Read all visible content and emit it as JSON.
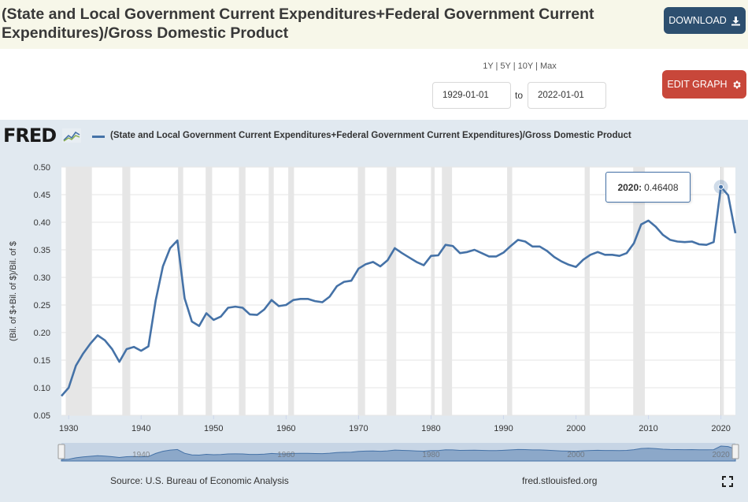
{
  "header": {
    "title": "(State and Local Government Current Expenditures+Federal Government Current Expenditures)/Gross Domestic Product",
    "download_label": "DOWNLOAD",
    "edit_label": "EDIT GRAPH"
  },
  "controls": {
    "range_links": "1Y | 5Y | 10Y | Max",
    "start_date": "1929-01-01",
    "to_label": "to",
    "end_date": "2022-01-01"
  },
  "logo": {
    "text": "FRED"
  },
  "tooltip": {
    "label": "2020:",
    "value": "0.46408"
  },
  "footer": {
    "source": "Source: U.S. Bureau of Economic Analysis",
    "site": "fred.stlouisfed.org"
  },
  "colors": {
    "line": "#4572a7",
    "recession": "#e6e6e6",
    "panel": "#e1e9f0"
  },
  "chart_data": {
    "type": "line",
    "title": "(State and Local Government Current Expenditures+Federal Government Current Expenditures)/Gross Domestic Product",
    "ylabel": "(Bil. of $+Bil. of $)/Bil. of $",
    "xlabel": "",
    "ylim": [
      0.05,
      0.5
    ],
    "xlim": [
      1929,
      2022
    ],
    "yticks": [
      "0.05",
      "0.10",
      "0.15",
      "0.20",
      "0.25",
      "0.30",
      "0.35",
      "0.40",
      "0.45",
      "0.50"
    ],
    "xticks": [
      "1930",
      "1940",
      "1950",
      "1960",
      "1970",
      "1980",
      "1990",
      "2000",
      "2010",
      "2020"
    ],
    "navigator_labels": [
      "1940",
      "1960",
      "1980",
      "2000",
      "2020"
    ],
    "legend": [
      "(State and Local Government Current Expenditures+Federal Government Current Expenditures)/Gross Domestic Product"
    ],
    "recessions": [
      [
        1929.6,
        1933.2
      ],
      [
        1937.4,
        1938.5
      ],
      [
        1945.1,
        1945.8
      ],
      [
        1948.9,
        1949.8
      ],
      [
        1953.5,
        1954.4
      ],
      [
        1957.6,
        1958.3
      ],
      [
        1960.3,
        1961.1
      ],
      [
        1969.9,
        1970.9
      ],
      [
        1973.9,
        1975.2
      ],
      [
        1980.0,
        1980.5
      ],
      [
        1981.5,
        1982.9
      ],
      [
        1990.5,
        1991.2
      ],
      [
        2001.2,
        2001.9
      ],
      [
        2007.9,
        2009.5
      ],
      [
        2020.1,
        2020.4
      ]
    ],
    "series": [
      {
        "name": "(State and Local Government Current Expenditures+Federal Government Current Expenditures)/Gross Domestic Product",
        "x": [
          1929,
          1930,
          1931,
          1932,
          1933,
          1934,
          1935,
          1936,
          1937,
          1938,
          1939,
          1940,
          1941,
          1942,
          1943,
          1944,
          1945,
          1946,
          1947,
          1948,
          1949,
          1950,
          1951,
          1952,
          1953,
          1954,
          1955,
          1956,
          1957,
          1958,
          1959,
          1960,
          1961,
          1962,
          1963,
          1964,
          1965,
          1966,
          1967,
          1968,
          1969,
          1970,
          1971,
          1972,
          1973,
          1974,
          1975,
          1976,
          1977,
          1978,
          1979,
          1980,
          1981,
          1982,
          1983,
          1984,
          1985,
          1986,
          1987,
          1988,
          1989,
          1990,
          1991,
          1992,
          1993,
          1994,
          1995,
          1996,
          1997,
          1998,
          1999,
          2000,
          2001,
          2002,
          2003,
          2004,
          2005,
          2006,
          2007,
          2008,
          2009,
          2010,
          2011,
          2012,
          2013,
          2014,
          2015,
          2016,
          2017,
          2018,
          2019,
          2020,
          2021,
          2022
        ],
        "values": [
          0.085,
          0.1,
          0.14,
          0.162,
          0.18,
          0.195,
          0.186,
          0.17,
          0.147,
          0.17,
          0.174,
          0.167,
          0.175,
          0.258,
          0.32,
          0.353,
          0.367,
          0.262,
          0.22,
          0.212,
          0.235,
          0.223,
          0.229,
          0.245,
          0.247,
          0.245,
          0.233,
          0.232,
          0.242,
          0.259,
          0.248,
          0.25,
          0.259,
          0.261,
          0.261,
          0.257,
          0.255,
          0.265,
          0.284,
          0.292,
          0.294,
          0.316,
          0.324,
          0.328,
          0.32,
          0.331,
          0.353,
          0.344,
          0.336,
          0.328,
          0.322,
          0.339,
          0.34,
          0.359,
          0.357,
          0.344,
          0.346,
          0.35,
          0.344,
          0.338,
          0.338,
          0.345,
          0.357,
          0.368,
          0.365,
          0.356,
          0.356,
          0.348,
          0.337,
          0.329,
          0.323,
          0.319,
          0.332,
          0.341,
          0.346,
          0.341,
          0.341,
          0.339,
          0.344,
          0.362,
          0.396,
          0.403,
          0.392,
          0.377,
          0.368,
          0.365,
          0.364,
          0.365,
          0.36,
          0.359,
          0.364,
          0.464,
          0.449,
          0.38
        ]
      }
    ]
  }
}
